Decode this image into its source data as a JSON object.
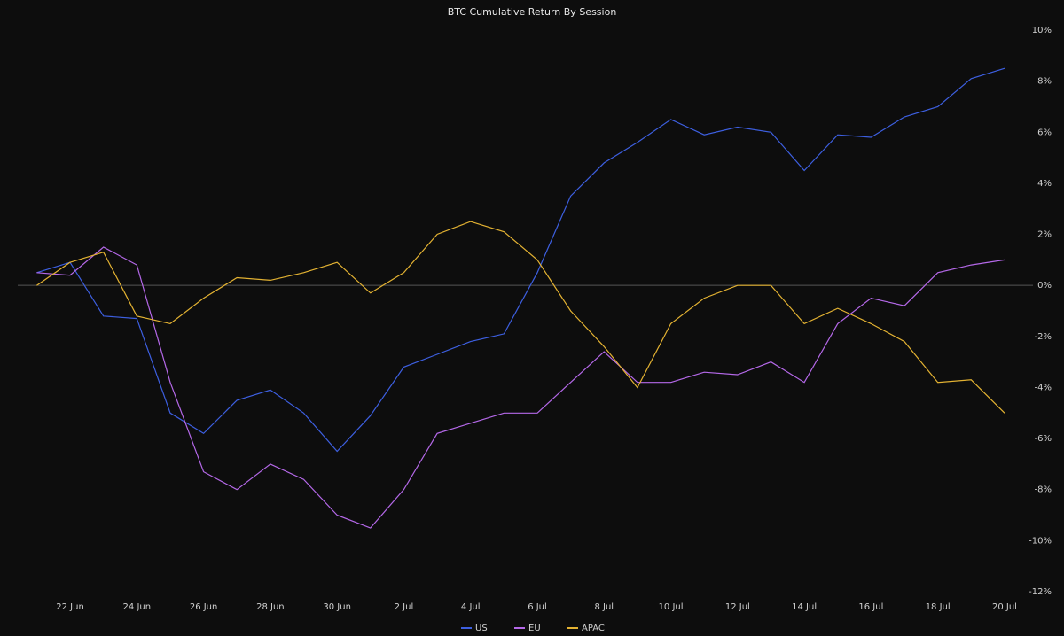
{
  "chart_data": {
    "type": "line",
    "title": "BTC Cumulative Return By Session",
    "x": [
      "21 Jun",
      "22 Jun",
      "23 Jun",
      "24 Jun",
      "25 Jun",
      "26 Jun",
      "27 Jun",
      "28 Jun",
      "29 Jun",
      "30 Jun",
      "1 Jul",
      "2 Jul",
      "3 Jul",
      "4 Jul",
      "5 Jul",
      "6 Jul",
      "7 Jul",
      "8 Jul",
      "9 Jul",
      "10 Jul",
      "11 Jul",
      "12 Jul",
      "13 Jul",
      "14 Jul",
      "15 Jul",
      "16 Jul",
      "17 Jul",
      "18 Jul",
      "19 Jul",
      "20 Jul"
    ],
    "xticks": [
      "22 Jun",
      "24 Jun",
      "26 Jun",
      "28 Jun",
      "30 Jun",
      "2 Jul",
      "4 Jul",
      "6 Jul",
      "8 Jul",
      "10 Jul",
      "12 Jul",
      "14 Jul",
      "16 Jul",
      "18 Jul",
      "20 Jul"
    ],
    "series": [
      {
        "name": "US",
        "color": "#3d5fe0",
        "values": [
          0.5,
          0.9,
          -1.2,
          -1.3,
          -5.0,
          -5.8,
          -4.5,
          -4.1,
          -5.0,
          -6.5,
          -5.1,
          -3.2,
          -2.7,
          -2.2,
          -1.9,
          0.5,
          3.5,
          4.8,
          5.6,
          6.5,
          5.9,
          6.2,
          6.0,
          4.5,
          5.9,
          5.8,
          6.6,
          7.0,
          8.1,
          8.5
        ]
      },
      {
        "name": "EU",
        "color": "#b468e8",
        "values": [
          0.5,
          0.4,
          1.5,
          0.8,
          -3.8,
          -7.3,
          -8.0,
          -7.0,
          -7.6,
          -9.0,
          -9.5,
          -8.0,
          -5.8,
          -5.4,
          -5.0,
          -5.0,
          -3.8,
          -2.6,
          -3.8,
          -3.8,
          -3.4,
          -3.5,
          -3.0,
          -3.8,
          -1.5,
          -0.5,
          -0.8,
          0.5,
          0.8,
          1.0
        ]
      },
      {
        "name": "APAC",
        "color": "#e3b232",
        "values": [
          0.0,
          0.9,
          1.3,
          -1.2,
          -1.5,
          -0.5,
          0.3,
          0.2,
          0.5,
          0.9,
          -0.3,
          0.5,
          2.0,
          2.5,
          2.1,
          1.0,
          -1.0,
          -2.4,
          -4.0,
          -1.5,
          -0.5,
          0.0,
          0.0,
          -1.5,
          -0.9,
          -1.5,
          -2.2,
          -3.8,
          -3.7,
          -5.0
        ]
      }
    ],
    "ylim": [
      -12,
      10
    ],
    "yticks": [
      {
        "value": 10,
        "label": "10%"
      },
      {
        "value": 8,
        "label": "8%"
      },
      {
        "value": 6,
        "label": "6%"
      },
      {
        "value": 4,
        "label": "4%"
      },
      {
        "value": 2,
        "label": "2%"
      },
      {
        "value": 0,
        "label": "0%"
      },
      {
        "value": -2,
        "label": "-2%"
      },
      {
        "value": -4,
        "label": "-4%"
      },
      {
        "value": -6,
        "label": "-6%"
      },
      {
        "value": -8,
        "label": "-8%"
      },
      {
        "value": -10,
        "label": "-10%"
      },
      {
        "value": -12,
        "label": "-12%"
      }
    ],
    "grid": false,
    "legend": "bottom"
  }
}
